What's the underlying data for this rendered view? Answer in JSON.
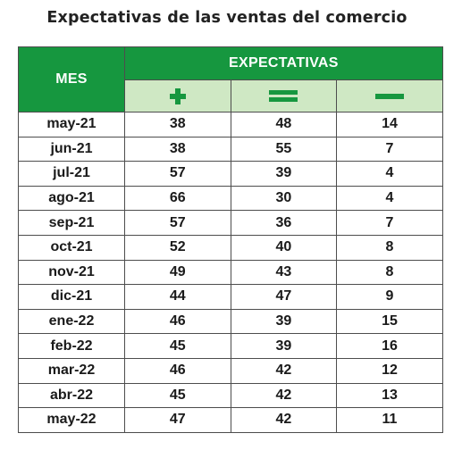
{
  "title": "Expectativas de las ventas del comercio",
  "header": {
    "month_label": "MES",
    "group_label": "EXPECTATIVAS",
    "icon_color": "#16973f",
    "columns": [
      {
        "icon": "plus-icon"
      },
      {
        "icon": "equals-icon"
      },
      {
        "icon": "minus-icon"
      }
    ]
  },
  "rows": [
    {
      "month": "may-21",
      "plus": "38",
      "equal": "48",
      "minus": "14"
    },
    {
      "month": "jun-21",
      "plus": "38",
      "equal": "55",
      "minus": "7"
    },
    {
      "month": "jul-21",
      "plus": "57",
      "equal": "39",
      "minus": "4"
    },
    {
      "month": "ago-21",
      "plus": "66",
      "equal": "30",
      "minus": "4"
    },
    {
      "month": "sep-21",
      "plus": "57",
      "equal": "36",
      "minus": "7"
    },
    {
      "month": "oct-21",
      "plus": "52",
      "equal": "40",
      "minus": "8"
    },
    {
      "month": "nov-21",
      "plus": "49",
      "equal": "43",
      "minus": "8"
    },
    {
      "month": "dic-21",
      "plus": "44",
      "equal": "47",
      "minus": "9"
    },
    {
      "month": "ene-22",
      "plus": "46",
      "equal": "39",
      "minus": "15"
    },
    {
      "month": "feb-22",
      "plus": "45",
      "equal": "39",
      "minus": "16"
    },
    {
      "month": "mar-22",
      "plus": "46",
      "equal": "42",
      "minus": "12"
    },
    {
      "month": "abr-22",
      "plus": "45",
      "equal": "42",
      "minus": "13"
    },
    {
      "month": "may-22",
      "plus": "47",
      "equal": "42",
      "minus": "11"
    }
  ]
}
